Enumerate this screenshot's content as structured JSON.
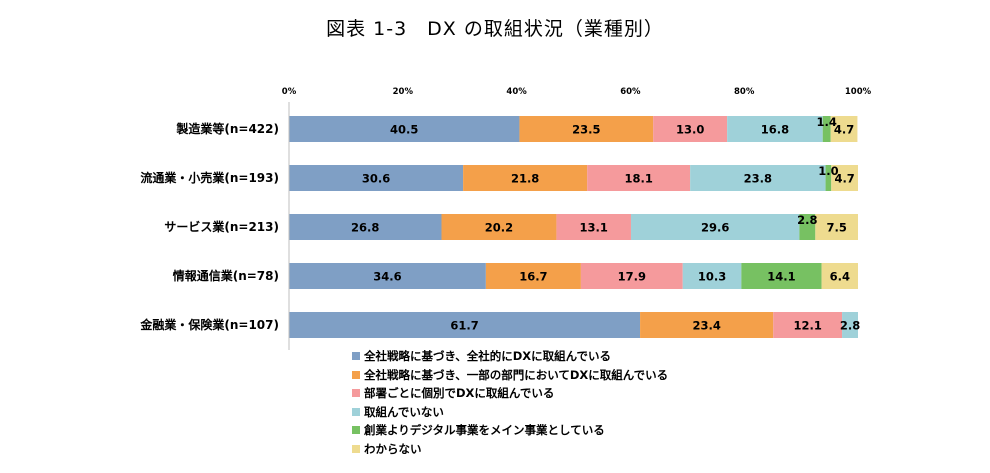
{
  "chart_data": {
    "type": "bar",
    "orientation": "horizontal",
    "stacked": true,
    "title": "図表 1-3　DX の取組状況（業種別）",
    "xlabel": "",
    "ylabel": "",
    "xlim": [
      0,
      100
    ],
    "x_ticks": [
      "0%",
      "20%",
      "40%",
      "60%",
      "80%",
      "100%"
    ],
    "grid": false,
    "legend_position": "bottom",
    "categories": [
      "製造業等(n=422)",
      "流通業・小売業(n=193)",
      "サービス業(n=213)",
      "情報通信業(n=78)",
      "金融業・保険業(n=107)"
    ],
    "series": [
      {
        "name": "全社戦略に基づき、全社的にDXに取組んでいる",
        "color": "#7f9fc5",
        "values": [
          40.5,
          30.6,
          26.8,
          34.6,
          61.7
        ],
        "labels": [
          "40.5",
          "30.6",
          "26.8",
          "34.6",
          "61.7"
        ]
      },
      {
        "name": "全社戦略に基づき、一部の部門においてDXに取組んでいる",
        "color": "#f4a04a",
        "values": [
          23.5,
          21.8,
          20.2,
          16.7,
          23.4
        ],
        "labels": [
          "23.5",
          "21.8",
          "20.2",
          "16.7",
          "23.4"
        ]
      },
      {
        "name": "部署ごとに個別でDXに取組んでいる",
        "color": "#f59a9c",
        "values": [
          13.0,
          18.1,
          13.1,
          17.9,
          12.1
        ],
        "labels": [
          "13.0",
          "18.1",
          "13.1",
          "17.9",
          "12.1"
        ]
      },
      {
        "name": "取組んでいない",
        "color": "#9fd1d9",
        "values": [
          16.8,
          23.8,
          29.6,
          10.3,
          2.8
        ],
        "labels": [
          "16.8",
          "23.8",
          "29.6",
          "10.3",
          "2.8"
        ]
      },
      {
        "name": "創業よりデジタル事業をメイン事業としている",
        "color": "#77c162",
        "values": [
          1.4,
          1.0,
          2.8,
          14.1,
          0
        ],
        "labels": [
          "1.4",
          "1.0",
          "2.8",
          "14.1",
          ""
        ]
      },
      {
        "name": "わからない",
        "color": "#eedb8f",
        "values": [
          4.7,
          4.7,
          7.5,
          6.4,
          0
        ],
        "labels": [
          "4.7",
          "4.7",
          "7.5",
          "6.4",
          ""
        ]
      }
    ]
  }
}
